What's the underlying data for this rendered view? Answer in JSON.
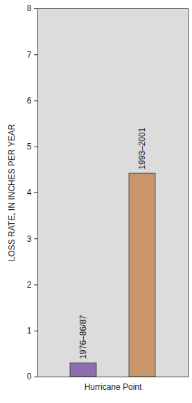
{
  "chart_data": {
    "type": "bar",
    "categories": [
      "Hurricane Point"
    ],
    "series": [
      {
        "name": "1976–86/87",
        "color": "#8b6db0",
        "values": [
          0.3
        ]
      },
      {
        "name": "1993–2001",
        "color": "#c9966b",
        "values": [
          4.42
        ]
      }
    ],
    "y_label": "LOSS RATE, IN INCHES PER YEAR",
    "ylim": [
      0,
      8
    ],
    "yticks": [
      0,
      1,
      2,
      3,
      4,
      5,
      6,
      7,
      8
    ]
  }
}
